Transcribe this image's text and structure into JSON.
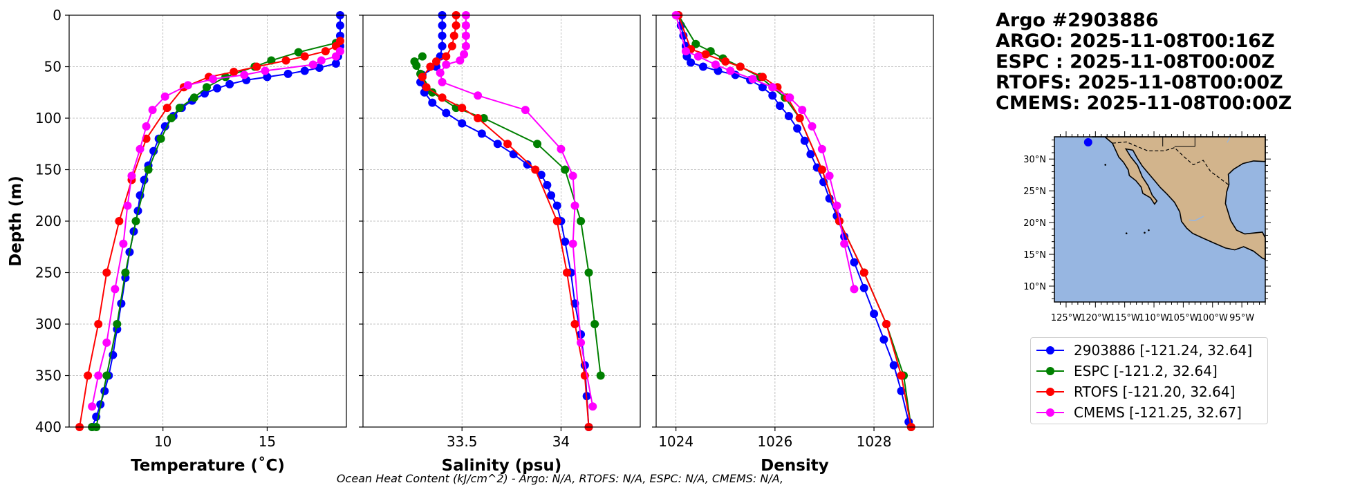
{
  "info": {
    "title": "Argo #2903886",
    "argo_time": "ARGO: 2025-11-08T00:16Z",
    "espc_time": "ESPC : 2025-11-08T00:00Z",
    "rtofs_time": "RTOFS: 2025-11-08T00:00Z",
    "cmems_time": "CMEMS: 2025-11-08T00:00Z"
  },
  "colors": {
    "argo": "#0000ff",
    "espc": "#008000",
    "rtofs": "#ff0000",
    "cmems": "#ff00ff",
    "ocean": "#97b6e1",
    "land": "#d2b48c",
    "grid": "#b0b0b0"
  },
  "legend": [
    {
      "key": "argo",
      "label": "2903886 [-121.24, 32.64]"
    },
    {
      "key": "espc",
      "label": "ESPC [-121.2, 32.64]"
    },
    {
      "key": "rtofs",
      "label": "RTOFS [-121.20, 32.64]"
    },
    {
      "key": "cmems",
      "label": "CMEMS [-121.25, 32.67]"
    }
  ],
  "caption": "Ocean Heat Content (kJ/cm^2) - Argo: N/A,  RTOFS: N/A,  ESPC: N/A,  CMEMS: N/A,",
  "map": {
    "lat_ticks": [
      "30°N",
      "25°N",
      "20°N",
      "15°N",
      "10°N"
    ],
    "lon_ticks": [
      "125°W",
      "120°W",
      "115°W",
      "110°W",
      "105°W",
      "100°W",
      "95°W"
    ],
    "float_lon": -121.24,
    "float_lat": 32.64
  },
  "chart_data": [
    {
      "type": "line",
      "title": "",
      "xlabel": "Temperature (˚C)",
      "ylabel": "Depth (m)",
      "xlim": [
        5.5,
        18.8
      ],
      "ylim": [
        400,
        0
      ],
      "grid": true,
      "xticks": [
        10,
        15
      ],
      "yticks": [
        0,
        50,
        100,
        150,
        200,
        250,
        300,
        350,
        400
      ],
      "series": [
        {
          "name": "2903886",
          "color": "argo",
          "marker_size": 6,
          "x": [
            18.5,
            18.5,
            18.5,
            18.5,
            18.4,
            18.3,
            17.5,
            16.8,
            16.0,
            15.0,
            14.0,
            13.2,
            12.6,
            12.0,
            11.4,
            10.9,
            10.5,
            10.1,
            9.8,
            9.55,
            9.3,
            9.1,
            8.9,
            8.8,
            8.6,
            8.4,
            8.2,
            8.0,
            7.8,
            7.6,
            7.4,
            7.2,
            7.0,
            6.8,
            6.6
          ],
          "y": [
            0,
            10,
            20,
            30,
            40,
            47,
            51,
            54,
            57,
            60,
            63,
            67,
            71,
            76,
            83,
            90,
            98,
            108,
            120,
            132,
            146,
            160,
            175,
            190,
            210,
            230,
            255,
            280,
            305,
            330,
            350,
            365,
            378,
            390,
            400
          ]
        },
        {
          "name": "ESPC",
          "color": "espc",
          "marker_size": 6,
          "x": [
            18.3,
            16.5,
            15.2,
            14.4,
            13.0,
            12.1,
            11.5,
            10.8,
            10.4,
            9.9,
            9.3,
            8.7,
            8.2,
            7.8,
            7.3,
            6.8,
            6.6
          ],
          "y": [
            27,
            36,
            44,
            50,
            60,
            70,
            80,
            90,
            100,
            120,
            150,
            200,
            250,
            300,
            350,
            400,
            400
          ]
        },
        {
          "name": "RTOFS",
          "color": "rtofs",
          "marker_size": 6,
          "x": [
            18.5,
            18.3,
            17.8,
            16.8,
            15.9,
            14.5,
            13.4,
            12.2,
            11.0,
            10.2,
            9.2,
            8.5,
            7.9,
            7.3,
            6.9,
            6.4,
            6.0
          ],
          "y": [
            25,
            30,
            35,
            40,
            44,
            50,
            55,
            60,
            70,
            90,
            120,
            160,
            200,
            250,
            300,
            350,
            400
          ]
        },
        {
          "name": "CMEMS",
          "color": "cmems",
          "marker_size": 6,
          "x": [
            18.5,
            18.3,
            17.6,
            17.2,
            14.9,
            13.9,
            12.4,
            11.2,
            10.1,
            9.5,
            9.2,
            8.9,
            8.5,
            8.3,
            8.1,
            7.7,
            7.3,
            6.9,
            6.6
          ],
          "y": [
            35,
            40,
            44,
            48,
            54,
            58,
            62,
            68,
            79,
            92,
            108,
            130,
            156,
            185,
            222,
            266,
            318,
            350,
            380
          ]
        }
      ]
    },
    {
      "type": "line",
      "title": "",
      "xlabel": "Salinity (psu)",
      "ylabel": "",
      "xlim": [
        33.0,
        34.4
      ],
      "ylim": [
        400,
        0
      ],
      "grid": true,
      "xticks": [
        33.5,
        34.0
      ],
      "yticks": [
        0,
        50,
        100,
        150,
        200,
        250,
        300,
        350,
        400
      ],
      "series": [
        {
          "name": "2903886",
          "color": "argo",
          "marker_size": 6,
          "x": [
            33.4,
            33.4,
            33.4,
            33.4,
            33.39,
            33.37,
            33.3,
            33.29,
            33.31,
            33.35,
            33.42,
            33.5,
            33.6,
            33.68,
            33.76,
            33.83,
            33.9,
            33.93,
            33.95,
            33.98,
            34.0,
            34.02,
            34.05,
            34.07,
            34.1,
            34.12,
            34.13,
            34.14
          ],
          "y": [
            0,
            10,
            20,
            30,
            40,
            50,
            58,
            65,
            75,
            85,
            95,
            105,
            115,
            125,
            135,
            145,
            155,
            165,
            175,
            185,
            200,
            220,
            250,
            280,
            310,
            340,
            370,
            400
          ]
        },
        {
          "name": "ESPC",
          "color": "espc",
          "marker_size": 6,
          "x": [
            33.3,
            33.26,
            33.27,
            33.29,
            33.35,
            33.47,
            33.61,
            33.88,
            34.02,
            34.1,
            34.14,
            34.17,
            34.2
          ],
          "y": [
            40,
            45,
            49,
            57,
            75,
            90,
            100,
            125,
            150,
            200,
            250,
            300,
            350
          ]
        },
        {
          "name": "RTOFS",
          "color": "rtofs",
          "marker_size": 6,
          "x": [
            33.47,
            33.47,
            33.46,
            33.45,
            33.42,
            33.37,
            33.34,
            33.3,
            33.32,
            33.4,
            33.5,
            33.58,
            33.73,
            33.87,
            33.98,
            34.03,
            34.07,
            34.12,
            34.14
          ],
          "y": [
            0,
            10,
            20,
            30,
            40,
            45,
            50,
            60,
            70,
            80,
            90,
            100,
            125,
            150,
            200,
            250,
            300,
            350,
            400
          ]
        },
        {
          "name": "CMEMS",
          "color": "cmems",
          "marker_size": 6,
          "x": [
            33.52,
            33.52,
            33.52,
            33.52,
            33.51,
            33.49,
            33.42,
            33.39,
            33.4,
            33.58,
            33.82,
            34.0,
            34.06,
            34.07,
            34.06,
            34.1,
            34.16
          ],
          "y": [
            0,
            10,
            20,
            30,
            38,
            44,
            48,
            56,
            65,
            78,
            92,
            130,
            156,
            185,
            222,
            318,
            380
          ]
        }
      ]
    },
    {
      "type": "line",
      "title": "",
      "xlabel": "Density",
      "ylabel": "",
      "xlim": [
        1023.6,
        1029.2
      ],
      "ylim": [
        400,
        0
      ],
      "grid": true,
      "xticks": [
        1024,
        1026,
        1028
      ],
      "yticks": [
        0,
        50,
        100,
        150,
        200,
        250,
        300,
        350,
        400
      ],
      "series": [
        {
          "name": "2903886",
          "color": "argo",
          "marker_size": 6,
          "x": [
            1024.05,
            1024.1,
            1024.15,
            1024.2,
            1024.22,
            1024.3,
            1024.55,
            1024.85,
            1025.2,
            1025.5,
            1025.75,
            1025.95,
            1026.1,
            1026.28,
            1026.45,
            1026.6,
            1026.72,
            1026.85,
            1026.98,
            1027.1,
            1027.25,
            1027.4,
            1027.6,
            1027.8,
            1028.0,
            1028.2,
            1028.4,
            1028.55,
            1028.7
          ],
          "y": [
            0,
            10,
            20,
            30,
            40,
            46,
            50,
            54,
            58,
            63,
            70,
            78,
            88,
            98,
            110,
            122,
            135,
            148,
            162,
            178,
            195,
            215,
            240,
            265,
            290,
            315,
            340,
            365,
            395
          ]
        },
        {
          "name": "ESPC",
          "color": "espc",
          "marker_size": 6,
          "x": [
            1024.05,
            1024.4,
            1024.7,
            1024.95,
            1025.3,
            1025.7,
            1025.95,
            1026.2,
            1026.5,
            1026.95,
            1027.3,
            1027.8,
            1028.25,
            1028.6,
            1028.75
          ],
          "y": [
            0,
            28,
            35,
            42,
            50,
            60,
            70,
            80,
            100,
            150,
            200,
            250,
            300,
            350,
            400
          ]
        },
        {
          "name": "RTOFS",
          "color": "rtofs",
          "marker_size": 6,
          "x": [
            1024.05,
            1024.3,
            1024.6,
            1025.0,
            1025.3,
            1025.75,
            1026.05,
            1026.25,
            1026.5,
            1026.95,
            1027.3,
            1027.8,
            1028.25,
            1028.55,
            1028.75
          ],
          "y": [
            0,
            33,
            38,
            45,
            50,
            60,
            70,
            80,
            100,
            150,
            200,
            250,
            300,
            350,
            400
          ]
        },
        {
          "name": "CMEMS",
          "color": "cmems",
          "marker_size": 6,
          "x": [
            1024.0,
            1024.2,
            1024.45,
            1024.8,
            1025.1,
            1025.55,
            1025.95,
            1026.3,
            1026.55,
            1026.75,
            1026.95,
            1027.1,
            1027.25,
            1027.4,
            1027.6
          ],
          "y": [
            0,
            35,
            40,
            48,
            54,
            62,
            70,
            80,
            92,
            108,
            130,
            156,
            185,
            222,
            266
          ]
        }
      ]
    }
  ]
}
